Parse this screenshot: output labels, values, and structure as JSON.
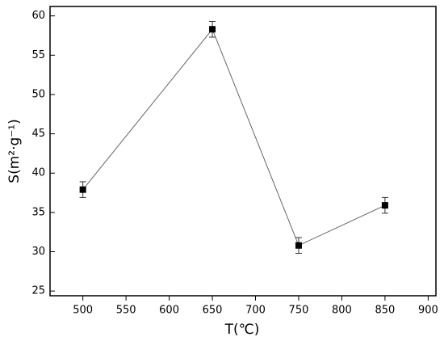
{
  "chart_data": {
    "type": "line",
    "x_label": "T(℃)",
    "y_label": "S(m²·g⁻¹)",
    "x": [
      500,
      650,
      750,
      850
    ],
    "series": [
      {
        "color": "#000000",
        "values": [
          37.9,
          58.3,
          30.8,
          35.9
        ],
        "errors": [
          1,
          1,
          1,
          1
        ]
      }
    ],
    "xlim": [
      462,
      909
    ],
    "ylim": [
      24.4,
      61.2
    ],
    "xticks": [
      500,
      550,
      600,
      650,
      700,
      750,
      800,
      850,
      900
    ],
    "yticks": [
      25,
      30,
      35,
      40,
      45,
      50,
      55,
      60
    ]
  }
}
